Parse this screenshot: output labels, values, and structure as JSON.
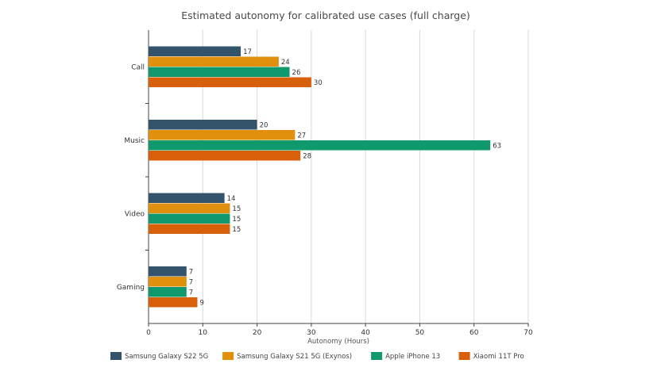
{
  "chart_data": {
    "type": "bar",
    "orientation": "horizontal",
    "title": "Estimated autonomy for calibrated use cases (full charge)",
    "xlabel": "Autonomy (Hours)",
    "ylabel": "",
    "xlim": [
      0,
      70
    ],
    "xticks": [
      0,
      10,
      20,
      30,
      40,
      50,
      60,
      70
    ],
    "grid": true,
    "legend_position": "bottom",
    "categories": [
      "Call",
      "Music",
      "Video",
      "Gaming"
    ],
    "series": [
      {
        "name": "Samsung Galaxy S22 5G",
        "color": "#34546b",
        "values": [
          17,
          20,
          14,
          7
        ]
      },
      {
        "name": "Samsung Galaxy S21 5G (Exynos)",
        "color": "#e0900c",
        "values": [
          24,
          27,
          15,
          7
        ]
      },
      {
        "name": "Apple iPhone 13",
        "color": "#10996c",
        "values": [
          26,
          63,
          15,
          7
        ]
      },
      {
        "name": "Xiaomi 11T Pro",
        "color": "#d9600a",
        "values": [
          30,
          28,
          15,
          9
        ]
      }
    ]
  }
}
